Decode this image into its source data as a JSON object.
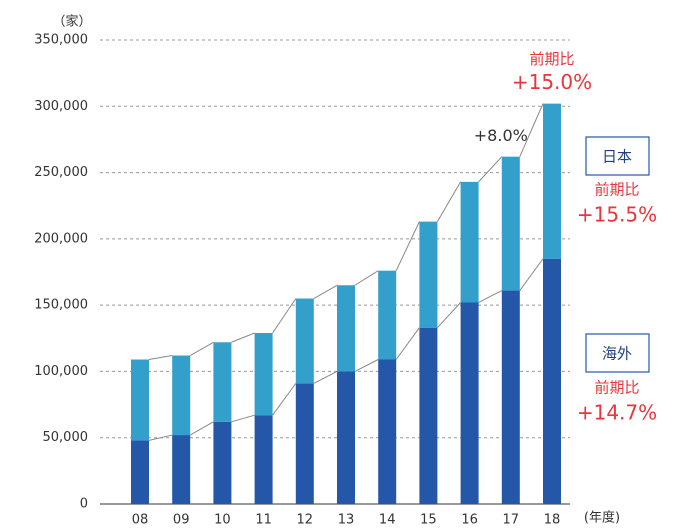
{
  "chart_data": {
    "type": "stacked_bar",
    "y_unit": "（家）",
    "x_unit": "(年度)",
    "categories": [
      "08",
      "09",
      "10",
      "11",
      "12",
      "13",
      "14",
      "15",
      "16",
      "17",
      "18"
    ],
    "series": [
      {
        "name": "海外",
        "color": "#2457a8",
        "values": [
          48000,
          52000,
          62000,
          67000,
          91000,
          100000,
          109000,
          133000,
          152000,
          161000,
          185000
        ],
        "growth_label": "前期比",
        "growth": "+14.7%"
      },
      {
        "name": "日本",
        "color": "#33a0cc",
        "values": [
          61000,
          60000,
          60000,
          62000,
          64000,
          65000,
          67000,
          80000,
          91000,
          101000,
          117000
        ],
        "growth_label": "前期比",
        "growth": "+15.5%"
      }
    ],
    "annotations": [
      {
        "text": "+8.0%"
      },
      {
        "label": "前期比",
        "text": "+15.0%"
      }
    ],
    "ylim": [
      0,
      350000
    ],
    "yticks": [
      0,
      {
        "value": 50000,
        "label": "50,000"
      },
      {
        "value": 100000,
        "label": "100,000"
      },
      {
        "value": 150000,
        "label": "150,000"
      },
      {
        "value": 200000,
        "label": "200,000"
      },
      {
        "value": 250000,
        "label": "250,000"
      },
      {
        "value": 300000,
        "label": "300,000"
      },
      {
        "value": 350000,
        "label": "350,000"
      }
    ],
    "grid": true
  }
}
